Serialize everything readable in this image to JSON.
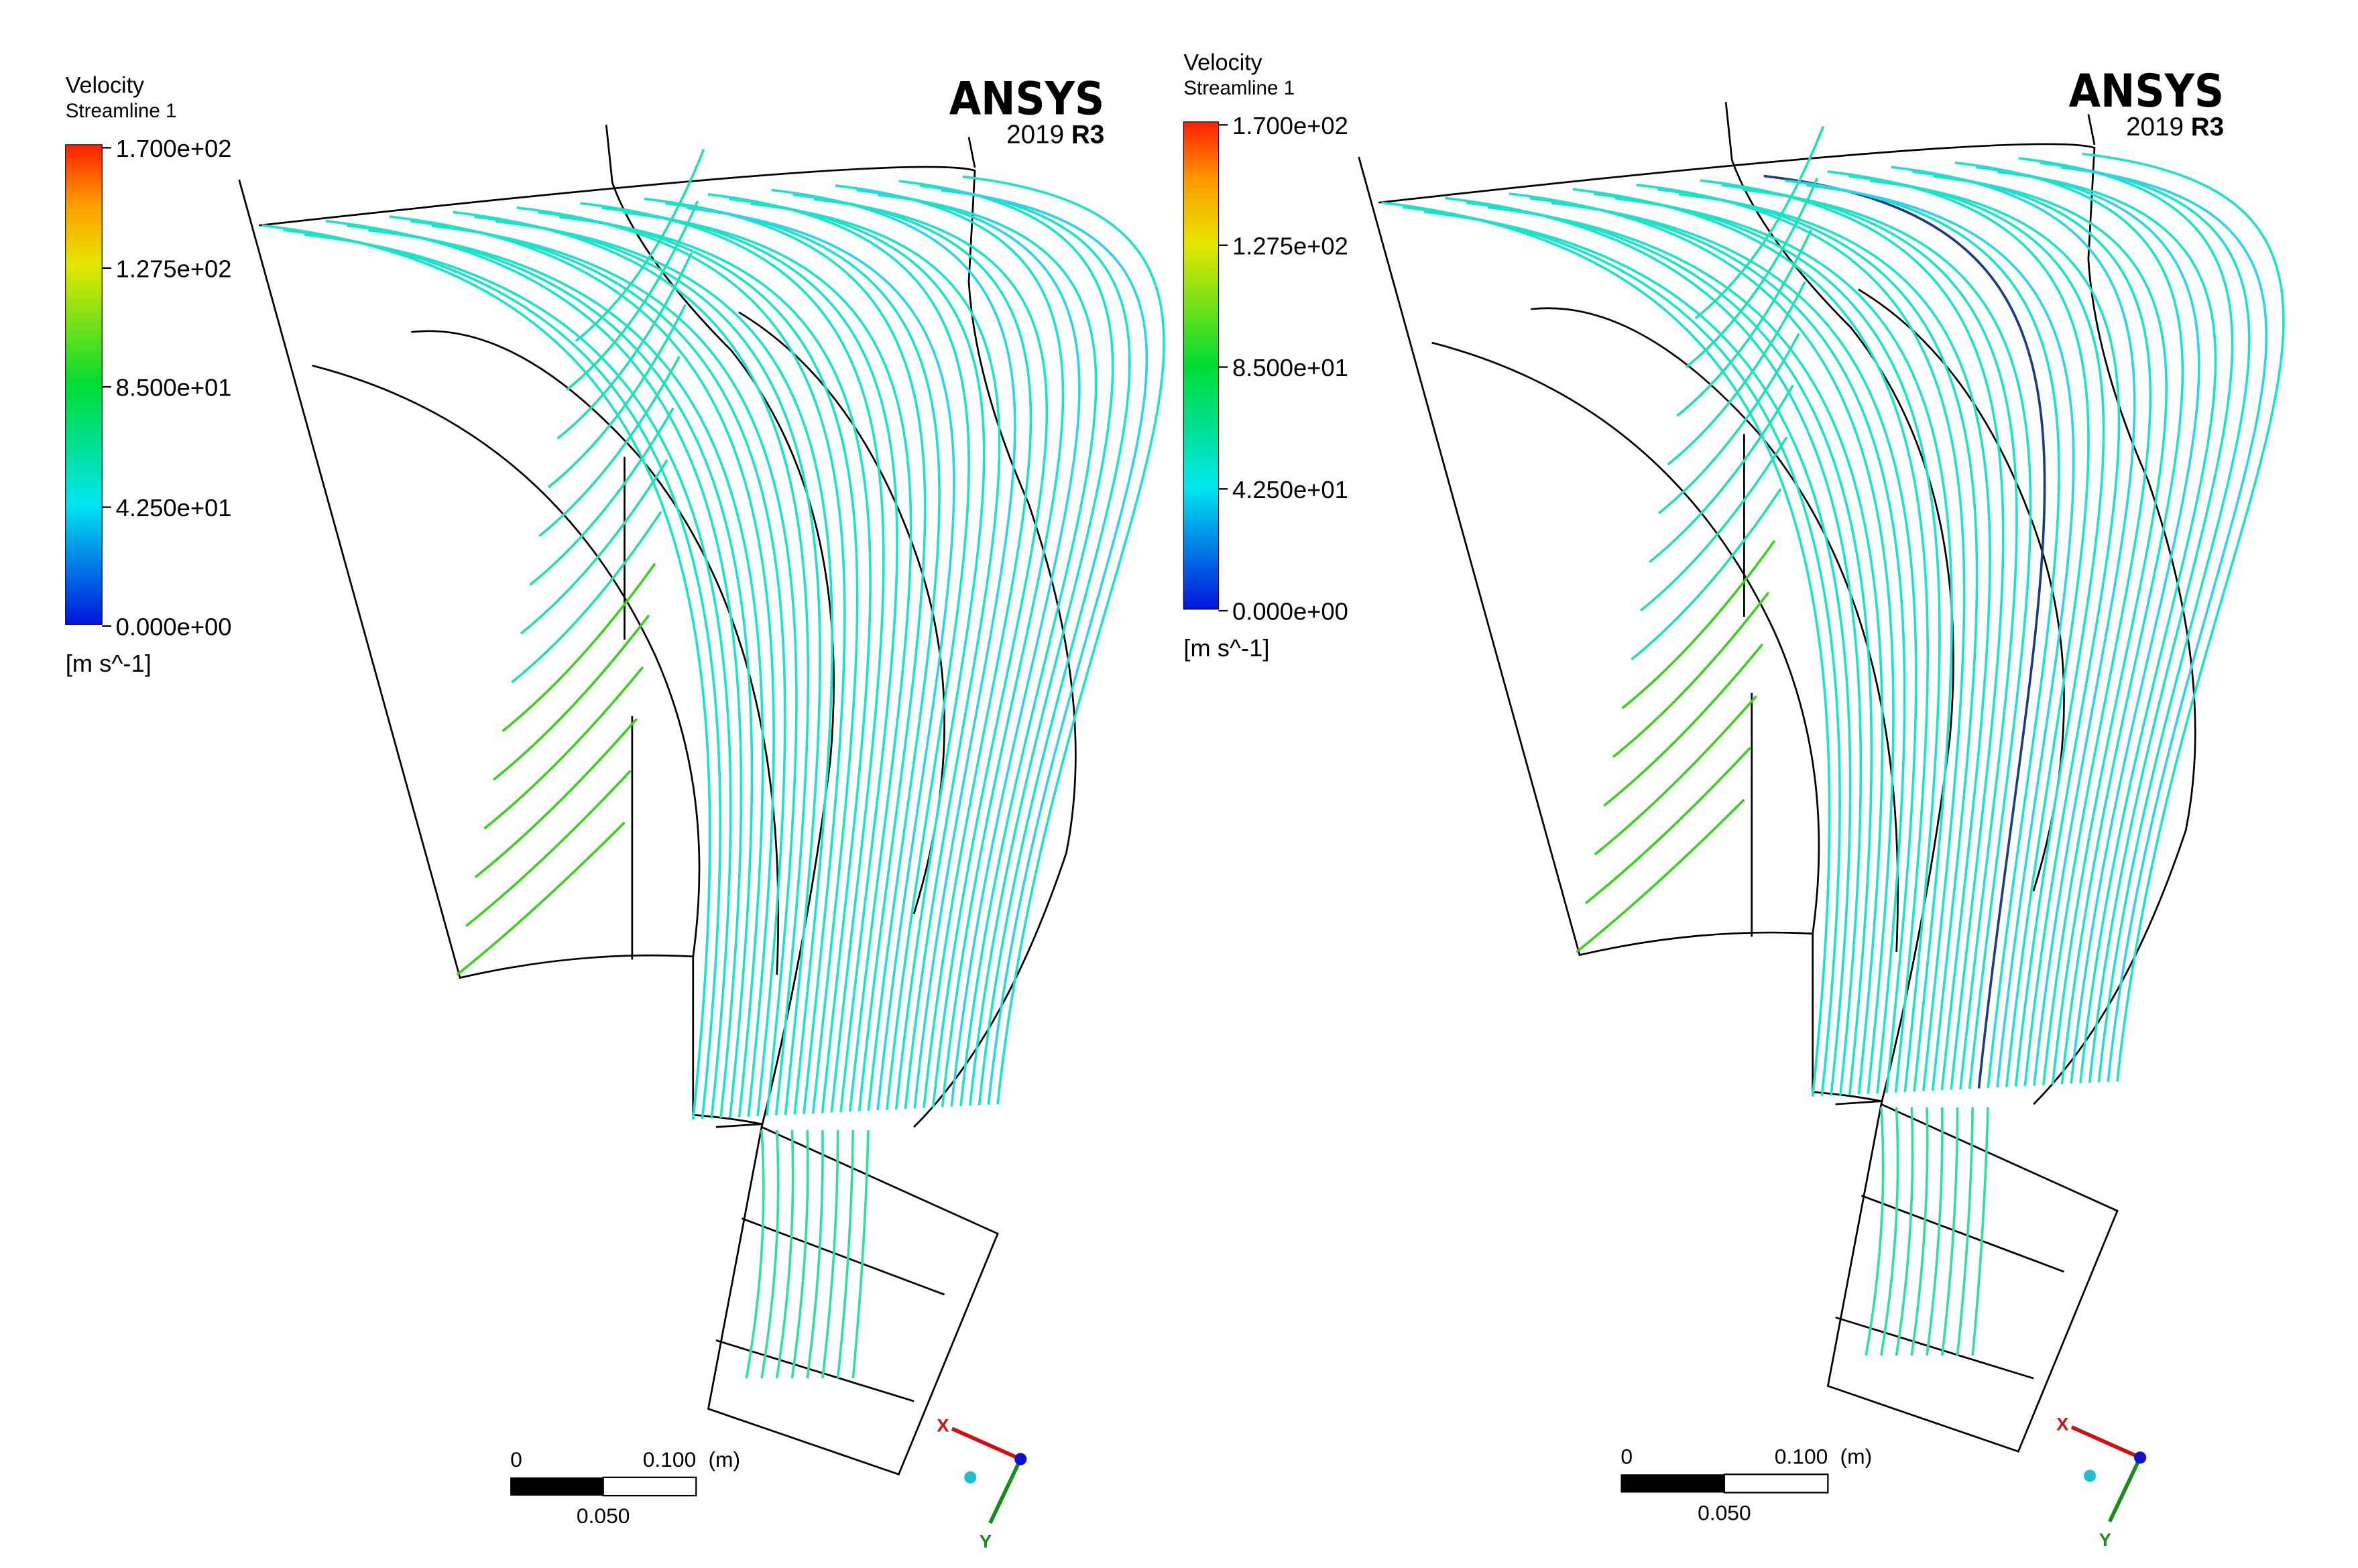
{
  "panels": [
    {
      "legend": {
        "title": "Velocity",
        "subtitle": "Streamline 1",
        "ticks": [
          "1.700e+02",
          "1.275e+02",
          "8.500e+01",
          "4.250e+01",
          "0.000e+00"
        ],
        "unit": "[m s^-1]"
      },
      "logo": {
        "brand": "ANSYS",
        "year": "2019",
        "release": "R3"
      },
      "scale": {
        "start": "0",
        "end": "0.100",
        "unit": "(m)",
        "mid": "0.050"
      },
      "axes": {
        "x": "X",
        "y": "Y"
      }
    },
    {
      "legend": {
        "title": "Velocity",
        "subtitle": "Streamline 1",
        "ticks": [
          "1.700e+02",
          "1.275e+02",
          "8.500e+01",
          "4.250e+01",
          "0.000e+00"
        ],
        "unit": "[m s^-1]"
      },
      "logo": {
        "brand": "ANSYS",
        "year": "2019",
        "release": "R3"
      },
      "scale": {
        "start": "0",
        "end": "0.100",
        "unit": "(m)",
        "mid": "0.050"
      },
      "axes": {
        "x": "X",
        "y": "Y"
      }
    }
  ]
}
